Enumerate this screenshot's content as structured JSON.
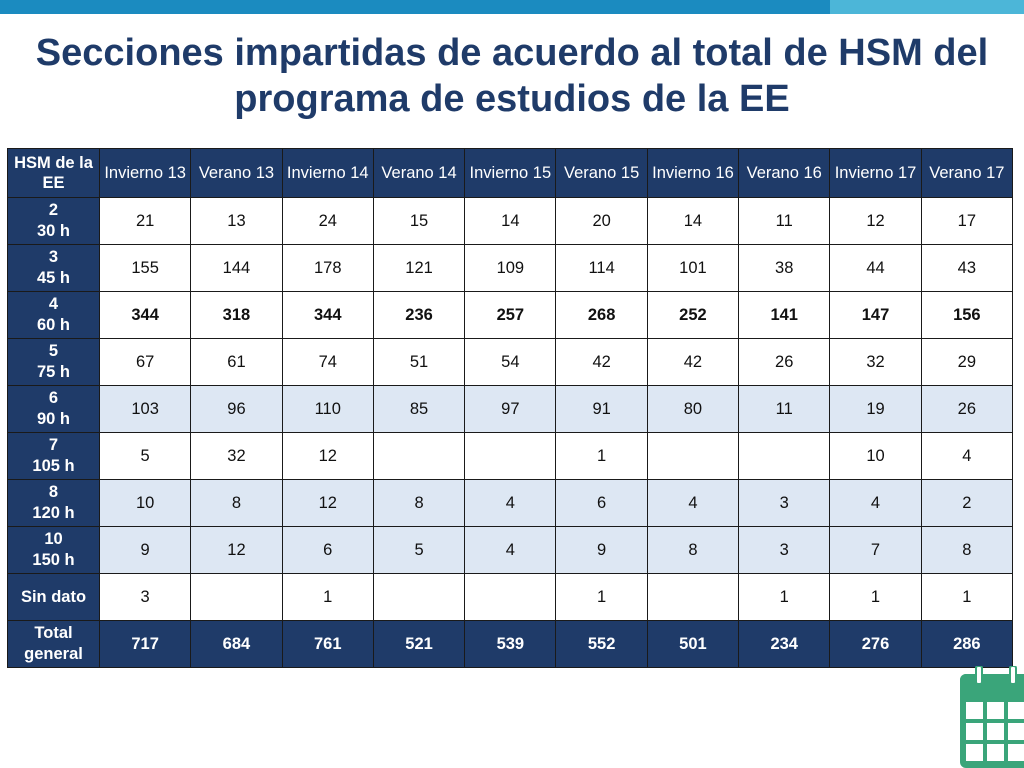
{
  "title": "Secciones impartidas de acuerdo al total de HSM del programa de estudios de la EE",
  "table": {
    "headers": [
      "HSM de la EE",
      "Invierno 13",
      "Verano 13",
      "Invierno 14",
      "Verano 14",
      "Invierno 15",
      "Verano 15",
      "Invierno 16",
      "Verano 16",
      "Invierno 17",
      "Verano 17"
    ],
    "rows": [
      {
        "label": [
          "2",
          "30 h"
        ],
        "style": "light",
        "values": [
          "21",
          "13",
          "24",
          "15",
          "14",
          "20",
          "14",
          "11",
          "12",
          "17"
        ]
      },
      {
        "label": [
          "3",
          "45 h"
        ],
        "style": "light",
        "values": [
          "155",
          "144",
          "178",
          "121",
          "109",
          "114",
          "101",
          "38",
          "44",
          "43"
        ]
      },
      {
        "label": [
          "4",
          "60 h"
        ],
        "style": "light bold",
        "values": [
          "344",
          "318",
          "344",
          "236",
          "257",
          "268",
          "252",
          "141",
          "147",
          "156"
        ]
      },
      {
        "label": [
          "5",
          "75 h"
        ],
        "style": "light",
        "values": [
          "67",
          "61",
          "74",
          "51",
          "54",
          "42",
          "42",
          "26",
          "32",
          "29"
        ]
      },
      {
        "label": [
          "6",
          "90 h"
        ],
        "style": "shade",
        "values": [
          "103",
          "96",
          "110",
          "85",
          "97",
          "91",
          "80",
          "11",
          "19",
          "26"
        ]
      },
      {
        "label": [
          "7",
          "105 h"
        ],
        "style": "light",
        "values": [
          "5",
          "32",
          "12",
          "",
          "",
          "1",
          "",
          "",
          "10",
          "4"
        ]
      },
      {
        "label": [
          "8",
          "120 h"
        ],
        "style": "shade",
        "values": [
          "10",
          "8",
          "12",
          "8",
          "4",
          "6",
          "4",
          "3",
          "4",
          "2"
        ]
      },
      {
        "label": [
          "10",
          "150 h"
        ],
        "style": "shade",
        "values": [
          "9",
          "12",
          "6",
          "5",
          "4",
          "9",
          "8",
          "3",
          "7",
          "8"
        ]
      },
      {
        "label": [
          "Sin dato"
        ],
        "style": "light",
        "values": [
          "3",
          "",
          "1",
          "",
          "",
          "1",
          "",
          "1",
          "1",
          "1"
        ]
      },
      {
        "label": [
          "Total",
          "general"
        ],
        "style": "total",
        "values": [
          "717",
          "684",
          "761",
          "521",
          "539",
          "552",
          "501",
          "234",
          "276",
          "286"
        ]
      }
    ]
  },
  "icons": {
    "calendar": "calendar-icon"
  },
  "colors": {
    "header_bg": "#1f3b69",
    "title": "#1f3b69",
    "shade_row": "#dde7f3",
    "topbar_dark": "#1b8bc0",
    "topbar_light": "#4cb6d8",
    "calendar": "#3aa57a"
  }
}
